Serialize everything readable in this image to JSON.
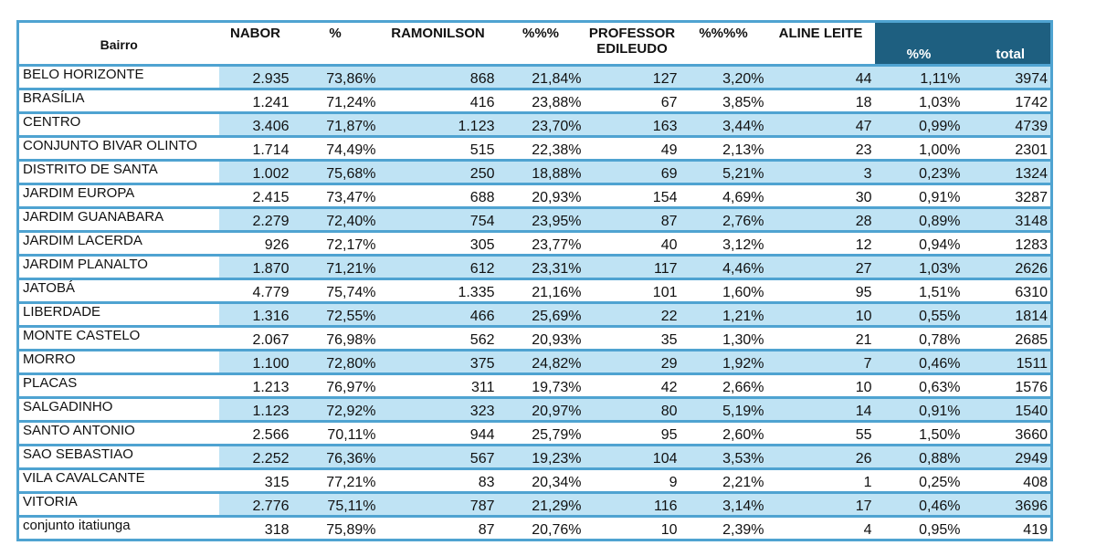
{
  "table": {
    "headers": {
      "bairro": "Bairro",
      "nabor": "NABOR",
      "pct_nabor": "%",
      "ramonilson": "RAMONILSON",
      "pct_ramonilson": "%%%",
      "professor_line1": "PROFESSOR",
      "professor_line2": "EDILEUDO",
      "pct_professor": "%%%%",
      "aline": "ALINE LEITE",
      "pct_aline": "%%",
      "total": "total"
    },
    "rows": [
      [
        "BELO HORIZONTE",
        "2.935",
        "73,86%",
        "868",
        "21,84%",
        "127",
        "3,20%",
        "44",
        "1,11%",
        "3974"
      ],
      [
        "BRASÍLIA",
        "1.241",
        "71,24%",
        "416",
        "23,88%",
        "67",
        "3,85%",
        "18",
        "1,03%",
        "1742"
      ],
      [
        "CENTRO",
        "3.406",
        "71,87%",
        "1.123",
        "23,70%",
        "163",
        "3,44%",
        "47",
        "0,99%",
        "4739"
      ],
      [
        "CONJUNTO BIVAR OLINTO",
        "1.714",
        "74,49%",
        "515",
        "22,38%",
        "49",
        "2,13%",
        "23",
        "1,00%",
        "2301"
      ],
      [
        "DISTRITO DE SANTA",
        "1.002",
        "75,68%",
        "250",
        "18,88%",
        "69",
        "5,21%",
        "3",
        "0,23%",
        "1324"
      ],
      [
        "JARDIM EUROPA",
        "2.415",
        "73,47%",
        "688",
        "20,93%",
        "154",
        "4,69%",
        "30",
        "0,91%",
        "3287"
      ],
      [
        "JARDIM GUANABARA",
        "2.279",
        "72,40%",
        "754",
        "23,95%",
        "87",
        "2,76%",
        "28",
        "0,89%",
        "3148"
      ],
      [
        "JARDIM LACERDA",
        "926",
        "72,17%",
        "305",
        "23,77%",
        "40",
        "3,12%",
        "12",
        "0,94%",
        "1283"
      ],
      [
        "JARDIM PLANALTO",
        "1.870",
        "71,21%",
        "612",
        "23,31%",
        "117",
        "4,46%",
        "27",
        "1,03%",
        "2626"
      ],
      [
        "JATOBÁ",
        "4.779",
        "75,74%",
        "1.335",
        "21,16%",
        "101",
        "1,60%",
        "95",
        "1,51%",
        "6310"
      ],
      [
        "LIBERDADE",
        "1.316",
        "72,55%",
        "466",
        "25,69%",
        "22",
        "1,21%",
        "10",
        "0,55%",
        "1814"
      ],
      [
        "MONTE CASTELO",
        "2.067",
        "76,98%",
        "562",
        "20,93%",
        "35",
        "1,30%",
        "21",
        "0,78%",
        "2685"
      ],
      [
        "MORRO",
        "1.100",
        "72,80%",
        "375",
        "24,82%",
        "29",
        "1,92%",
        "7",
        "0,46%",
        "1511"
      ],
      [
        "PLACAS",
        "1.213",
        "76,97%",
        "311",
        "19,73%",
        "42",
        "2,66%",
        "10",
        "0,63%",
        "1576"
      ],
      [
        "SALGADINHO",
        "1.123",
        "72,92%",
        "323",
        "20,97%",
        "80",
        "5,19%",
        "14",
        "0,91%",
        "1540"
      ],
      [
        "SANTO ANTONIO",
        "2.566",
        "70,11%",
        "944",
        "25,79%",
        "95",
        "2,60%",
        "55",
        "1,50%",
        "3660"
      ],
      [
        "SAO SEBASTIAO",
        "2.252",
        "76,36%",
        "567",
        "19,23%",
        "104",
        "3,53%",
        "26",
        "0,88%",
        "2949"
      ],
      [
        "VILA CAVALCANTE",
        "315",
        "77,21%",
        "83",
        "20,34%",
        "9",
        "2,21%",
        "1",
        "0,25%",
        "408"
      ],
      [
        "VITORIA",
        "2.776",
        "75,11%",
        "787",
        "21,29%",
        "116",
        "3,14%",
        "17",
        "0,46%",
        "3696"
      ],
      [
        "conjunto itatiunga",
        "318",
        "75,89%",
        "87",
        "20,76%",
        "10",
        "2,39%",
        "4",
        "0,95%",
        "419"
      ]
    ]
  },
  "colors": {
    "border": "#4fa3d1",
    "band": "#bfe3f4",
    "header_dark": "#1e5f80"
  }
}
